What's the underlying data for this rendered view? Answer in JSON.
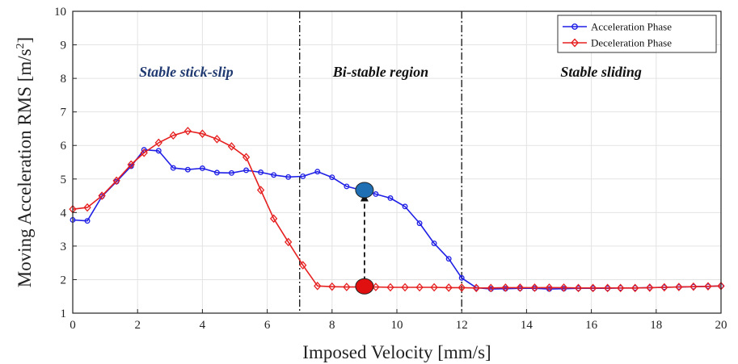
{
  "chart_data": {
    "type": "line",
    "xlabel": "Imposed Velocity [mm/s]",
    "ylabel_main": "Moving Acceleration RMS [m/s",
    "ylabel_sup": "2",
    "ylabel_close": "]",
    "xlim": [
      0,
      20
    ],
    "ylim": [
      1,
      10
    ],
    "xticks": [
      0,
      2,
      4,
      6,
      8,
      10,
      12,
      14,
      16,
      18,
      20
    ],
    "yticks": [
      1,
      2,
      3,
      4,
      5,
      6,
      7,
      8,
      9,
      10
    ],
    "grid": true,
    "legend_position": "top-right",
    "series": [
      {
        "name": "Acceleration Phase",
        "color": "#1f1fe6",
        "marker": "circle",
        "x": [
          0,
          0.45,
          0.9,
          1.35,
          1.8,
          2.2,
          2.65,
          3.1,
          3.55,
          4.0,
          4.45,
          4.9,
          5.35,
          5.8,
          6.2,
          6.65,
          7.1,
          7.55,
          8.0,
          8.45,
          8.9,
          9.35,
          9.8,
          10.25,
          10.7,
          11.15,
          11.6,
          12.0,
          12.45,
          12.9,
          13.35,
          13.8,
          14.25,
          14.7,
          15.15,
          15.6,
          16.05,
          16.5,
          16.9,
          17.35,
          17.8,
          18.25,
          18.7,
          19.15,
          19.6,
          20.0
        ],
        "y": [
          3.78,
          3.75,
          4.48,
          4.92,
          5.38,
          5.87,
          5.84,
          5.33,
          5.28,
          5.32,
          5.19,
          5.18,
          5.26,
          5.2,
          5.12,
          5.06,
          5.08,
          5.22,
          5.05,
          4.78,
          4.67,
          4.55,
          4.43,
          4.18,
          3.68,
          3.08,
          2.62,
          2.05,
          1.76,
          1.72,
          1.73,
          1.74,
          1.74,
          1.72,
          1.73,
          1.74,
          1.74,
          1.74,
          1.75,
          1.75,
          1.76,
          1.77,
          1.78,
          1.79,
          1.8,
          1.81
        ]
      },
      {
        "name": "Deceleration Phase",
        "color": "#e62020",
        "marker": "diamond",
        "x": [
          0,
          0.45,
          0.9,
          1.35,
          1.8,
          2.2,
          2.65,
          3.1,
          3.55,
          4.0,
          4.45,
          4.9,
          5.35,
          5.8,
          6.2,
          6.65,
          7.1,
          7.55,
          8.0,
          8.45,
          8.9,
          9.35,
          9.8,
          10.25,
          10.7,
          11.15,
          11.6,
          12.0,
          12.45,
          12.9,
          13.35,
          13.8,
          14.25,
          14.7,
          15.15,
          15.6,
          16.05,
          16.5,
          16.9,
          17.35,
          17.8,
          18.25,
          18.7,
          19.15,
          19.6,
          20.0
        ],
        "y": [
          4.1,
          4.15,
          4.5,
          4.95,
          5.43,
          5.78,
          6.08,
          6.3,
          6.43,
          6.35,
          6.19,
          5.97,
          5.65,
          4.67,
          3.82,
          3.12,
          2.43,
          1.81,
          1.79,
          1.78,
          1.78,
          1.78,
          1.77,
          1.77,
          1.77,
          1.77,
          1.76,
          1.76,
          1.75,
          1.75,
          1.76,
          1.76,
          1.76,
          1.76,
          1.76,
          1.75,
          1.75,
          1.75,
          1.75,
          1.75,
          1.76,
          1.77,
          1.78,
          1.79,
          1.8,
          1.81
        ]
      }
    ],
    "vertical_lines": [
      7,
      12
    ],
    "regions": [
      {
        "label": "Stable stick-slip",
        "x": 3.5,
        "y": 8.05,
        "color": "#1f3870"
      },
      {
        "label": "Bi-stable region",
        "x": 9.5,
        "y": 8.05,
        "color": "#111111"
      },
      {
        "label": "Stable sliding",
        "x": 16.3,
        "y": 8.05,
        "color": "#111111"
      }
    ],
    "highlight_points": [
      {
        "x": 9.0,
        "y": 4.67,
        "color": "#1f6fb5"
      },
      {
        "x": 9.0,
        "y": 1.8,
        "color": "#e01010"
      }
    ],
    "transition_arrow": {
      "x": 9.0,
      "from_y": 1.95,
      "to_y": 4.45
    }
  }
}
